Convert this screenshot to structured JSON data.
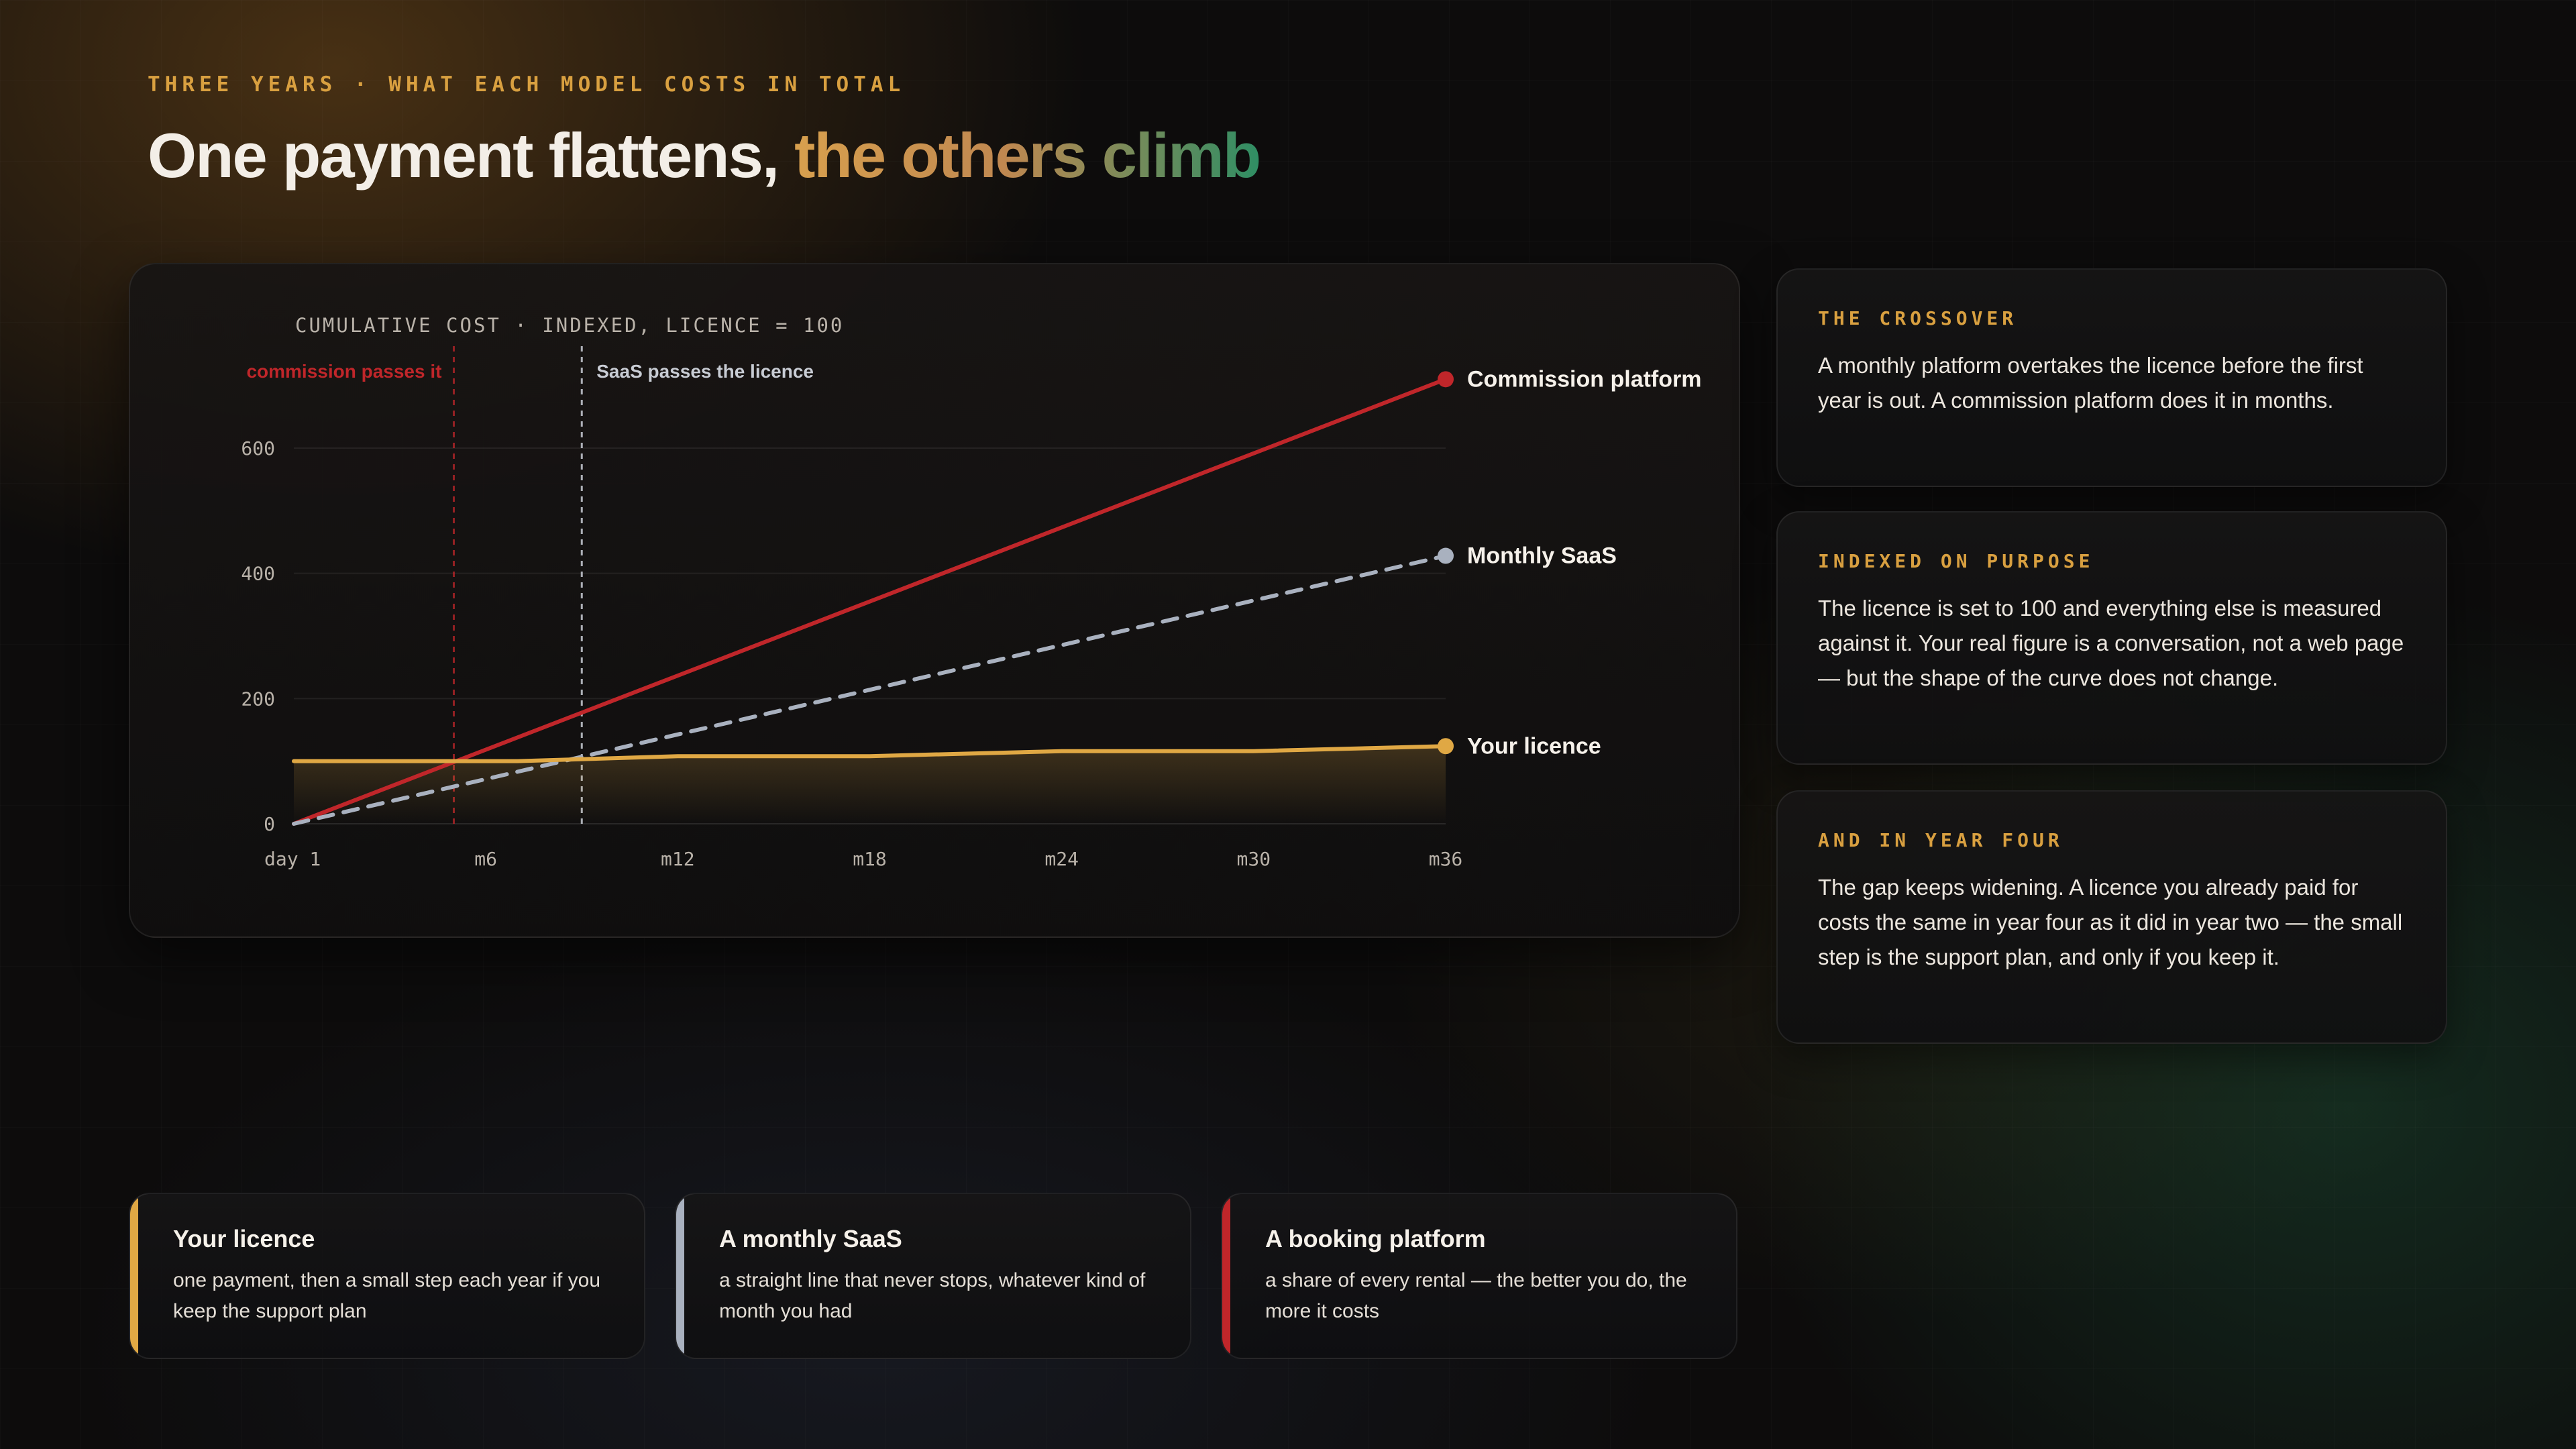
{
  "header": {
    "eyebrow": "THREE YEARS · WHAT EACH MODEL COSTS IN TOTAL",
    "title_plain": "One payment flattens,",
    "title_accent": "the others climb"
  },
  "chart_data": {
    "type": "line",
    "title": "CUMULATIVE COST · INDEXED, LICENCE = 100",
    "categories": [
      "day 1",
      "m6",
      "m12",
      "m18",
      "m24",
      "m30",
      "m36"
    ],
    "x_ticks": [
      "day 1",
      "m6",
      "m12",
      "m18",
      "m24",
      "m30",
      "m36"
    ],
    "y_ticks": [
      0,
      200,
      400,
      600
    ],
    "ylim": [
      0,
      600
    ],
    "grid": true,
    "series": [
      {
        "name": "Commission platform",
        "color": "#c0262a",
        "style": "solid",
        "x": [
          0,
          36
        ],
        "values": [
          0,
          710
        ]
      },
      {
        "name": "Monthly SaaS",
        "color": "#a9b1bf",
        "style": "dashed",
        "x": [
          0,
          36
        ],
        "values": [
          0,
          428
        ]
      },
      {
        "name": "Your licence",
        "color": "#e0a844",
        "style": "solid",
        "area": true,
        "x": [
          0,
          6,
          7,
          12,
          18,
          24,
          30,
          36
        ],
        "values": [
          100,
          100,
          100,
          108,
          108,
          116,
          116,
          124
        ]
      }
    ],
    "annotations": [
      {
        "label": "commission passes it",
        "x": 5,
        "color": "#c0262a"
      },
      {
        "label": "SaaS passes the licence",
        "x": 9,
        "color": "#c8ccd4"
      }
    ]
  },
  "side_cards": [
    {
      "kicker": "THE CROSSOVER",
      "body": "A monthly platform overtakes the licence before the first year is out. A commission platform does it in months."
    },
    {
      "kicker": "INDEXED ON PURPOSE",
      "body": "The licence is set to 100 and everything else is measured against it. Your real figure is a conversation, not a web page — but the shape of the curve does not change."
    },
    {
      "kicker": "AND IN YEAR FOUR",
      "body": "The gap keeps widening. A licence you already paid for costs the same in year four as it did in year two — the small step is the support plan, and only if you keep it."
    }
  ],
  "legend_cards": [
    {
      "title": "Your licence",
      "body": "one payment, then a small step each year if you keep the support plan",
      "color": "#e0a844"
    },
    {
      "title": "A monthly SaaS",
      "body": "a straight line that never stops, whatever kind of month you had",
      "color": "#a9b1bf"
    },
    {
      "title": "A booking platform",
      "body": "a share of every rental — the better you do, the more it costs",
      "color": "#c0262a"
    }
  ]
}
